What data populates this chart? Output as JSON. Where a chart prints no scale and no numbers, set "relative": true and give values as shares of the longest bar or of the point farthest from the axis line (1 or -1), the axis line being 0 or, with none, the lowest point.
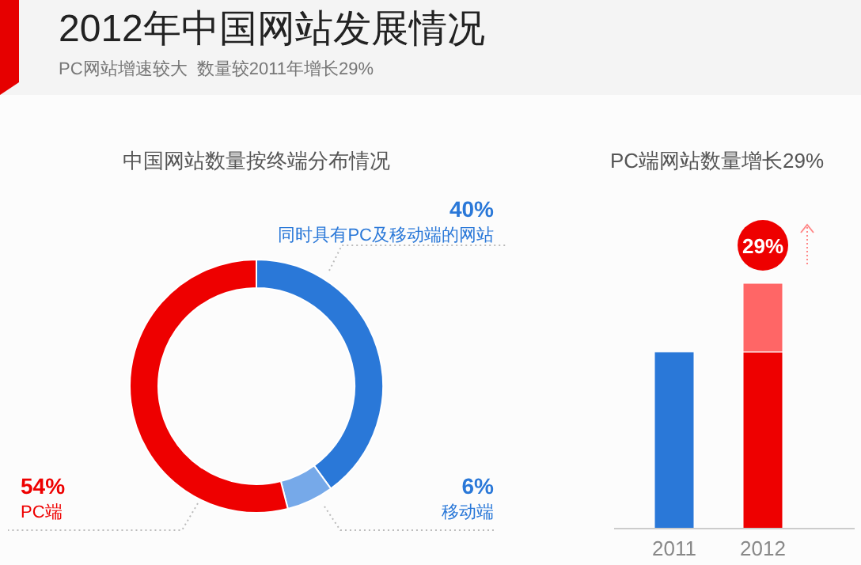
{
  "chart_data": [
    {
      "type": "other",
      "title": "2012年中国网站发展情况",
      "subtitle": "PC网站增速较大  数量较2011年增长29%"
    },
    {
      "type": "donut",
      "title": "中国网站数量按终端分布情况",
      "categories": [
        "同时具有PC及移动端的网站",
        "移动端",
        "PC端"
      ],
      "values": [
        40,
        6,
        54
      ],
      "colors": [
        "#2a78d8",
        "#76a9e9",
        "#ee0000"
      ],
      "value_labels": [
        "40%",
        "6%",
        "54%"
      ]
    },
    {
      "type": "bar",
      "title": "PC端网站数量增长29%",
      "categories": [
        "2011",
        "2012"
      ],
      "relative": true,
      "stacked": true,
      "series": [
        {
          "values": [
            0.72,
            0.72
          ],
          "colors": [
            "#2a78d8",
            "#ee0000"
          ]
        },
        {
          "values": [
            null,
            0.28
          ],
          "color": "#ff6666"
        }
      ],
      "annotations": [
        {
          "text": "29%",
          "x": "2012",
          "y": 1
        }
      ]
    }
  ]
}
